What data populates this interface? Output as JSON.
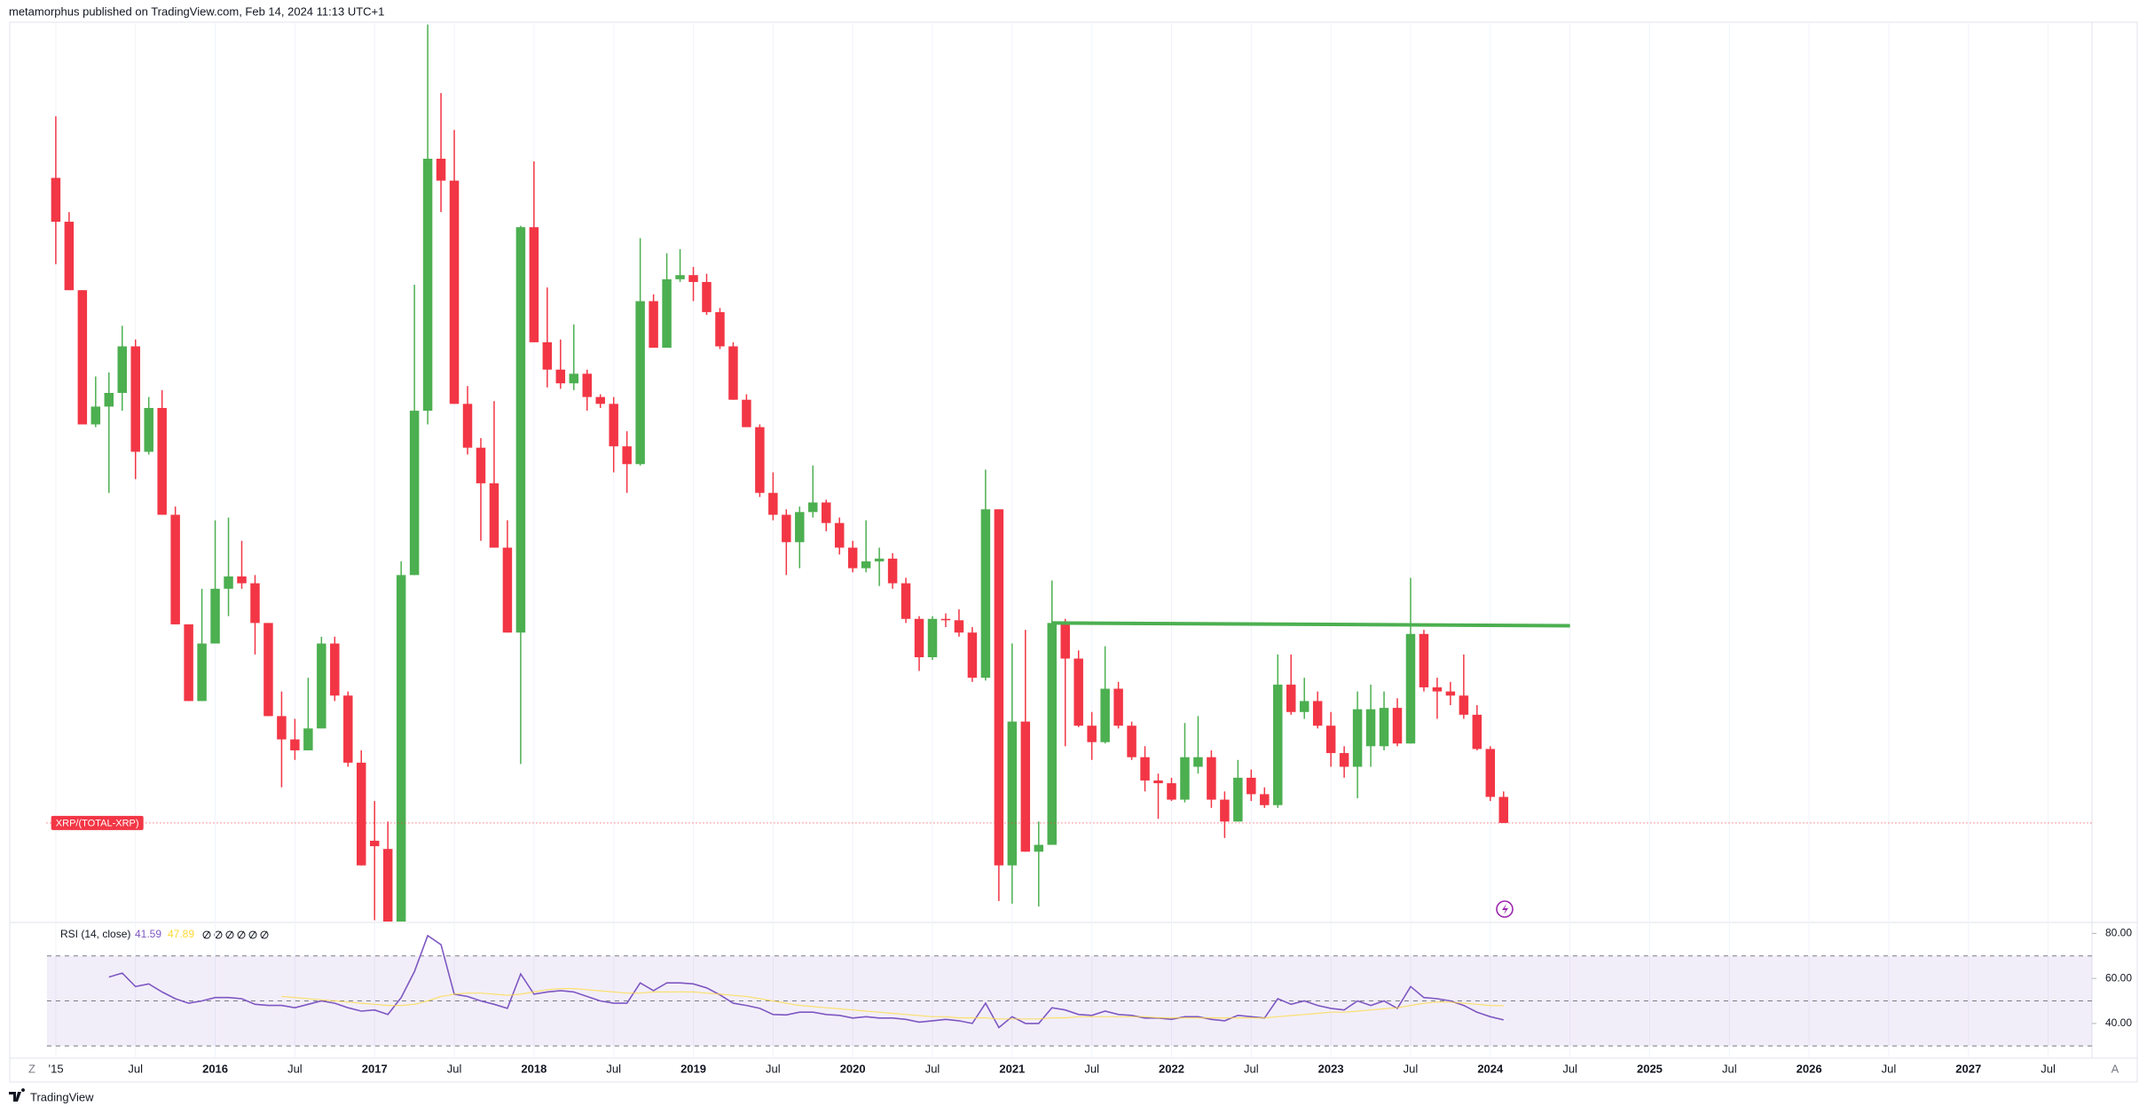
{
  "header": "metamorphus published on TradingView.com, Feb 14, 2024 11:13 UTC+1",
  "footer": "TradingView",
  "axis_buttons": [
    "Z",
    "A"
  ],
  "chart_data": [
    {
      "type": "candlestick",
      "label": "XRP/(TOTAL-XRP)",
      "up_color": "#4caf50",
      "down_color": "#f23645",
      "open": [
        543,
        511,
        461,
        363,
        376,
        386,
        420,
        343,
        375,
        297,
        217,
        161,
        203,
        243,
        252,
        247,
        218,
        150,
        133,
        125,
        141,
        203,
        165,
        116,
        59,
        53,
        0,
        253,
        373,
        557,
        541,
        378,
        346,
        320,
        273,
        211,
        507,
        423,
        403,
        393,
        400,
        383,
        378,
        347,
        334,
        453,
        419,
        469,
        472,
        467,
        445,
        420,
        381,
        361,
        313,
        297,
        277,
        299,
        306,
        291,
        273,
        258,
        263,
        265,
        247,
        221,
        193,
        221,
        220,
        211,
        178,
        301,
        41,
        146,
        51,
        56,
        218,
        192,
        143,
        131,
        170,
        143,
        120,
        103,
        101,
        89,
        113,
        120,
        89,
        73,
        105,
        93,
        85,
        173,
        153,
        161,
        143,
        123,
        113,
        128,
        128,
        156,
        130,
        210,
        171,
        168,
        165,
        151,
        126,
        91
      ],
      "high": [
        588,
        518,
        461,
        398,
        401,
        435,
        425,
        383,
        388,
        303,
        217,
        243,
        293,
        295,
        278,
        253,
        218,
        168,
        148,
        178,
        208,
        208,
        168,
        125,
        88,
        73,
        263,
        465,
        655,
        605,
        578,
        391,
        353,
        380,
        293,
        508,
        555,
        463,
        425,
        436,
        403,
        385,
        383,
        358,
        499,
        458,
        488,
        491,
        478,
        473,
        448,
        423,
        385,
        363,
        328,
        301,
        303,
        333,
        308,
        295,
        278,
        293,
        273,
        269,
        251,
        223,
        223,
        225,
        228,
        215,
        330,
        301,
        203,
        213,
        73,
        249,
        221,
        198,
        153,
        201,
        175,
        146,
        128,
        108,
        105,
        145,
        150,
        125,
        95,
        118,
        111,
        98,
        195,
        195,
        178,
        168,
        153,
        128,
        168,
        173,
        168,
        163,
        251,
        213,
        178,
        175,
        195,
        158,
        128,
        95
      ],
      "low": [
        480,
        461,
        363,
        361,
        313,
        373,
        323,
        341,
        297,
        217,
        161,
        161,
        203,
        223,
        243,
        195,
        150,
        98,
        118,
        125,
        141,
        161,
        113,
        41,
        1,
        0,
        0,
        253,
        363,
        518,
        378,
        341,
        278,
        273,
        211,
        115,
        423,
        390,
        389,
        388,
        373,
        375,
        328,
        313,
        333,
        419,
        419,
        467,
        453,
        443,
        418,
        381,
        361,
        310,
        293,
        253,
        258,
        295,
        285,
        268,
        255,
        255,
        245,
        243,
        218,
        183,
        191,
        215,
        208,
        175,
        176,
        15,
        13,
        51,
        11,
        56,
        128,
        142,
        118,
        130,
        141,
        118,
        95,
        75,
        88,
        87,
        108,
        83,
        61,
        73,
        88,
        83,
        83,
        151,
        148,
        141,
        113,
        105,
        90,
        113,
        125,
        128,
        130,
        168,
        148,
        158,
        148,
        125,
        88,
        72
      ],
      "close": [
        511,
        461,
        363,
        376,
        386,
        420,
        343,
        375,
        297,
        217,
        161,
        203,
        243,
        252,
        247,
        218,
        150,
        133,
        125,
        141,
        203,
        165,
        116,
        41,
        55,
        0,
        253,
        373,
        557,
        541,
        378,
        346,
        320,
        273,
        211,
        507,
        423,
        403,
        393,
        400,
        383,
        378,
        347,
        334,
        453,
        419,
        469,
        472,
        467,
        445,
        420,
        381,
        361,
        313,
        297,
        277,
        299,
        306,
        291,
        273,
        258,
        263,
        265,
        247,
        221,
        193,
        221,
        220,
        211,
        178,
        301,
        41,
        146,
        51,
        56,
        218,
        192,
        143,
        131,
        170,
        143,
        120,
        103,
        101,
        89,
        120,
        120,
        89,
        73,
        105,
        93,
        85,
        173,
        153,
        161,
        143,
        123,
        113,
        155,
        155,
        156,
        130,
        210,
        171,
        168,
        165,
        151,
        126,
        91,
        72
      ],
      "ylim": [
        0,
        658
      ],
      "xlim": [
        -3.4,
        153.3
      ],
      "xticks": [
        {
          "value": 0,
          "label": "’15"
        },
        {
          "value": 6,
          "label": "Jul"
        },
        {
          "value": 12,
          "label": "2016"
        },
        {
          "value": 18,
          "label": "Jul"
        },
        {
          "value": 24,
          "label": "2017"
        },
        {
          "value": 30,
          "label": "Jul"
        },
        {
          "value": 36,
          "label": "2018"
        },
        {
          "value": 42,
          "label": "Jul"
        },
        {
          "value": 48,
          "label": "2019"
        },
        {
          "value": 54,
          "label": "Jul"
        },
        {
          "value": 60,
          "label": "2020"
        },
        {
          "value": 66,
          "label": "Jul"
        },
        {
          "value": 72,
          "label": "2021"
        },
        {
          "value": 78,
          "label": "Jul"
        },
        {
          "value": 84,
          "label": "2022"
        },
        {
          "value": 90,
          "label": "Jul"
        },
        {
          "value": 96,
          "label": "2023"
        },
        {
          "value": 102,
          "label": "Jul"
        },
        {
          "value": 108,
          "label": "2024"
        },
        {
          "value": 114,
          "label": "Jul"
        },
        {
          "value": 120,
          "label": "2025"
        },
        {
          "value": 126,
          "label": "Jul"
        },
        {
          "value": 132,
          "label": "2026"
        },
        {
          "value": 138,
          "label": "Jul"
        },
        {
          "value": 144,
          "label": "2027"
        },
        {
          "value": 150,
          "label": "Jul"
        }
      ],
      "grid": true,
      "trend_line": {
        "color": "#4caf50",
        "x": [
          75,
          114
        ],
        "values": [
          218,
          216
        ]
      }
    },
    {
      "type": "line",
      "title": "RSI (14, close)",
      "series": [
        {
          "color": "#7e57c2",
          "values": [
            null,
            null,
            null,
            null,
            60.6,
            62.4,
            56.4,
            57.6,
            54,
            51,
            49,
            50,
            51.5,
            51.5,
            51,
            48.5,
            48,
            48,
            47,
            48.5,
            50,
            49,
            47,
            45.5,
            46,
            44,
            51.5,
            63,
            79,
            75,
            53,
            52,
            50,
            48.5,
            46.7,
            62,
            53,
            54,
            54.6,
            54,
            52,
            50,
            49,
            49,
            58,
            54.6,
            58,
            58,
            57.6,
            55.8,
            52.7,
            49,
            48,
            46.7,
            44,
            43.8,
            45,
            45,
            44,
            43.6,
            42.4,
            43,
            42.4,
            42.4,
            41.8,
            40.6,
            41.2,
            41.8,
            41.2,
            40,
            49,
            38.2,
            43,
            40,
            40,
            47,
            46,
            44,
            43.6,
            45.5,
            44,
            43.6,
            42.4,
            42.4,
            41.8,
            43,
            43,
            41.8,
            41.2,
            43.6,
            43,
            42.4,
            51,
            48.5,
            50,
            48,
            46.7,
            46,
            50,
            48,
            50,
            46.7,
            56.4,
            51.5,
            51,
            50,
            48,
            45,
            43,
            41.59
          ]
        },
        {
          "color": "#fdd835",
          "values": [
            null,
            null,
            null,
            null,
            null,
            null,
            null,
            null,
            null,
            null,
            null,
            null,
            null,
            null,
            null,
            null,
            null,
            52,
            51.5,
            51,
            50.5,
            50,
            49.5,
            49,
            48.5,
            48,
            48,
            48.5,
            50,
            52,
            53,
            53.5,
            53.5,
            53,
            52.5,
            53,
            54,
            55,
            55.5,
            55.5,
            55,
            54.5,
            54,
            53.5,
            53.5,
            54,
            54,
            54,
            54,
            53.5,
            53,
            52.5,
            52,
            51,
            50,
            49,
            48,
            47.5,
            47,
            46.5,
            46,
            45.5,
            45,
            44.5,
            44,
            43.5,
            43,
            43,
            42.5,
            42.5,
            42.5,
            42,
            42,
            42,
            42,
            42.5,
            42.5,
            43,
            43,
            43,
            43,
            43,
            43,
            42.5,
            42.5,
            42.5,
            42.5,
            42.5,
            42.5,
            42.5,
            42.5,
            42.5,
            43,
            43.5,
            44,
            44.5,
            45,
            45,
            45.5,
            46,
            46.5,
            47,
            48,
            49,
            49.5,
            49.5,
            49,
            48.5,
            48,
            47.89
          ]
        }
      ],
      "ylim": [
        24.6,
        84.1
      ],
      "xlim": [
        -3.4,
        153.3
      ],
      "yticks": [
        {
          "value": 40,
          "label": "40.00"
        },
        {
          "value": 60,
          "label": "60.00"
        },
        {
          "value": 80,
          "label": "80.00"
        }
      ],
      "levels": [
        30,
        50,
        70
      ],
      "band_color": "#7e57c2"
    }
  ]
}
